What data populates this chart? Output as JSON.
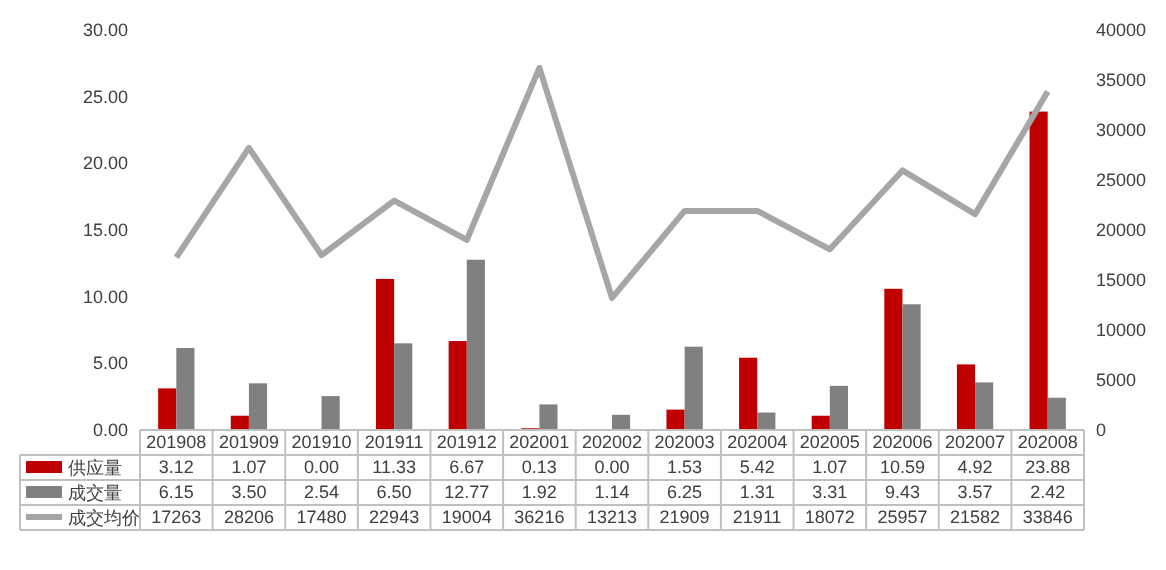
{
  "chart_data": {
    "type": "bar",
    "categories": [
      "201908",
      "201909",
      "201910",
      "201911",
      "201912",
      "202001",
      "202002",
      "202003",
      "202004",
      "202005",
      "202006",
      "202007",
      "202008"
    ],
    "series": [
      {
        "name": "供应量",
        "color": "#c00000",
        "values": [
          3.12,
          1.07,
          0.0,
          11.33,
          6.67,
          0.13,
          0.0,
          1.53,
          5.42,
          1.07,
          10.59,
          4.92,
          23.88
        ],
        "value_labels": [
          "3.12",
          "1.07",
          "0.00",
          "11.33",
          "6.67",
          "0.13",
          "0.00",
          "1.53",
          "5.42",
          "1.07",
          "10.59",
          "4.92",
          "23.88"
        ]
      },
      {
        "name": "成交量",
        "color": "#808080",
        "values": [
          6.15,
          3.5,
          2.54,
          6.5,
          12.77,
          1.92,
          1.14,
          6.25,
          1.31,
          3.31,
          9.43,
          3.57,
          2.42
        ],
        "value_labels": [
          "6.15",
          "3.50",
          "2.54",
          "6.50",
          "12.77",
          "1.92",
          "1.14",
          "6.25",
          "1.31",
          "3.31",
          "9.43",
          "3.57",
          "2.42"
        ]
      },
      {
        "name": "成交均价",
        "type": "line",
        "axis": "y2",
        "color": "#a6a6a6",
        "values": [
          17263,
          28206,
          17480,
          22943,
          19004,
          36216,
          13213,
          21909,
          21911,
          18072,
          25957,
          21582,
          33846
        ],
        "value_labels": [
          "17263",
          "28206",
          "17480",
          "22943",
          "19004",
          "36216",
          "13213",
          "21909",
          "21911",
          "18072",
          "25957",
          "21582",
          "33846"
        ]
      }
    ],
    "ylim": [
      0,
      30
    ],
    "yticks": [
      {
        "value": 0,
        "label": "0.00"
      },
      {
        "value": 5,
        "label": "5.00"
      },
      {
        "value": 10,
        "label": "10.00"
      },
      {
        "value": 15,
        "label": "15.00"
      },
      {
        "value": 20,
        "label": "20.00"
      },
      {
        "value": 25,
        "label": "25.00"
      },
      {
        "value": 30,
        "label": "30.00"
      }
    ],
    "y2lim": [
      0,
      40000
    ],
    "y2ticks": [
      0,
      5000,
      10000,
      15000,
      20000,
      25000,
      30000,
      35000,
      40000
    ],
    "legend": "bottom",
    "line_style": "solid",
    "marker": "none"
  }
}
